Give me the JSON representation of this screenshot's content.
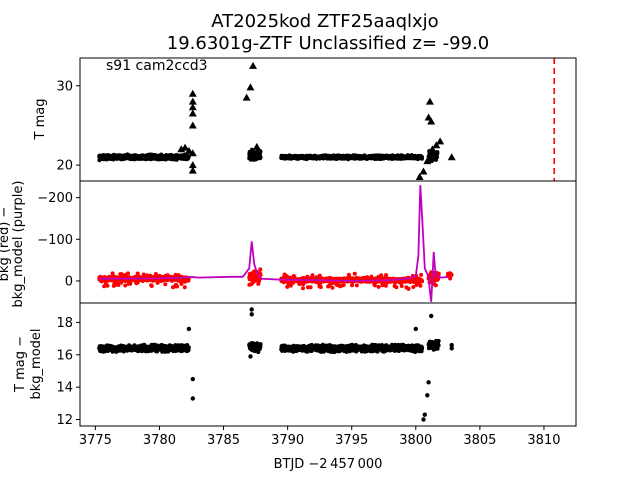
{
  "figure": {
    "title_line1": "AT2025kod  ZTF25aaqlxjo",
    "title_line2": "19.6301g-ZTF Unclassified z= -99.0",
    "sector_label": "s91 cam2ccd3",
    "x_label": "BTJD −2 457 000"
  },
  "colors": {
    "axis": "#000000",
    "points": "#000000",
    "bkg_points": "#ff0000",
    "bkg_model": "#bf00bf",
    "marker_line": "#ff0000"
  },
  "chart_data": [
    {
      "type": "scatter",
      "panel": "top",
      "ylabel": "T mag",
      "ylim": [
        33.5,
        18.0
      ],
      "inverted_y": true,
      "yticks": [
        20,
        30
      ],
      "xlim": [
        3773.8,
        3812.5
      ],
      "marker_line_x": 3810.8,
      "segments": [
        {
          "start": 3775.3,
          "end": 3782.3,
          "mag": 21.0,
          "spread": 0.4
        },
        {
          "start": 3787.0,
          "end": 3787.9,
          "mag": 21.3,
          "spread": 0.8
        },
        {
          "start": 3789.5,
          "end": 3800.5,
          "mag": 21.0,
          "spread": 0.3
        },
        {
          "start": 3801.0,
          "end": 3801.7,
          "mag": 21.2,
          "spread": 0.8
        }
      ],
      "triangles": [
        {
          "x": 3781.7,
          "y": 22.0
        },
        {
          "x": 3782.0,
          "y": 22.2
        },
        {
          "x": 3782.3,
          "y": 21.8
        },
        {
          "x": 3782.6,
          "y": 19.3
        },
        {
          "x": 3782.6,
          "y": 20.0
        },
        {
          "x": 3782.6,
          "y": 21.5
        },
        {
          "x": 3782.6,
          "y": 25.0
        },
        {
          "x": 3782.6,
          "y": 26.5
        },
        {
          "x": 3782.6,
          "y": 27.3
        },
        {
          "x": 3782.6,
          "y": 28.0
        },
        {
          "x": 3782.6,
          "y": 29.0
        },
        {
          "x": 3786.8,
          "y": 28.5
        },
        {
          "x": 3787.1,
          "y": 29.8
        },
        {
          "x": 3787.3,
          "y": 32.5
        },
        {
          "x": 3787.3,
          "y": 21.2
        },
        {
          "x": 3787.6,
          "y": 22.3
        },
        {
          "x": 3800.3,
          "y": 18.5
        },
        {
          "x": 3800.6,
          "y": 19.2
        },
        {
          "x": 3800.9,
          "y": 20.5
        },
        {
          "x": 3801.0,
          "y": 26.0
        },
        {
          "x": 3801.1,
          "y": 28.0
        },
        {
          "x": 3801.2,
          "y": 25.5
        },
        {
          "x": 3801.3,
          "y": 22.0
        },
        {
          "x": 3801.6,
          "y": 22.5
        },
        {
          "x": 3801.9,
          "y": 23.0
        },
        {
          "x": 3802.8,
          "y": 21.0
        }
      ]
    },
    {
      "type": "scatter+line",
      "panel": "middle",
      "ylabel": "bkg (red) −\nbkg_model (purple)",
      "ylabel_line1": "bkg (red) −",
      "ylabel_line2": "bkg_model (purple)",
      "ylim": [
        -240,
        53
      ],
      "yticks": [
        0,
        -100,
        -200
      ],
      "xlim": [
        3773.8,
        3812.5
      ],
      "bkg_model": {
        "x": [
          3775.3,
          3780.0,
          3782.0,
          3782.5,
          3783.0,
          3785.5,
          3786.5,
          3787.0,
          3787.2,
          3787.4,
          3787.6,
          3787.8,
          3788.0,
          3789.5,
          3792.0,
          3795.0,
          3798.0,
          3799.5,
          3800.0,
          3800.2,
          3800.35,
          3800.5,
          3800.7,
          3801.0,
          3801.1,
          3801.2,
          3801.3,
          3801.4,
          3801.5,
          3801.6,
          3802.0,
          3802.6
        ],
        "y": [
          -5,
          -6,
          -8,
          -10,
          -8,
          -10,
          -10,
          -30,
          -95,
          -40,
          -20,
          -10,
          -5,
          -3,
          -2,
          0,
          -2,
          -6,
          -12,
          -60,
          -230,
          -150,
          -30,
          -10,
          25,
          50,
          -10,
          -70,
          -30,
          -12,
          -8,
          -10
        ]
      },
      "bkg_segments": [
        {
          "start": 3775.3,
          "end": 3782.3,
          "base": -5,
          "spread": 6
        },
        {
          "start": 3787.0,
          "end": 3787.9,
          "base": -10,
          "spread": 15
        },
        {
          "start": 3789.5,
          "end": 3800.5,
          "base": -2,
          "spread": 6
        },
        {
          "start": 3801.0,
          "end": 3801.8,
          "base": -10,
          "spread": 15
        },
        {
          "start": 3802.5,
          "end": 3802.8,
          "base": -15,
          "spread": 5
        }
      ]
    },
    {
      "type": "scatter",
      "panel": "bottom",
      "ylabel": "T mag −\nbkg_model",
      "ylabel_line1": "T mag −",
      "ylabel_line2": "bkg_model",
      "ylim": [
        19.2,
        11.6
      ],
      "inverted_y": true,
      "yticks": [
        12,
        14,
        16,
        18
      ],
      "xlim": [
        3773.8,
        3812.5
      ],
      "xticks": [
        3775,
        3780,
        3785,
        3790,
        3795,
        3800,
        3805,
        3810
      ],
      "segments": [
        {
          "start": 3775.3,
          "end": 3782.3,
          "mag": 16.4,
          "spread": 0.45
        },
        {
          "start": 3787.0,
          "end": 3787.9,
          "mag": 16.5,
          "spread": 0.6
        },
        {
          "start": 3789.5,
          "end": 3800.5,
          "mag": 16.4,
          "spread": 0.45
        },
        {
          "start": 3801.0,
          "end": 3801.8,
          "mag": 16.6,
          "spread": 0.6
        }
      ],
      "outliers": [
        {
          "x": 3782.6,
          "y": 13.3
        },
        {
          "x": 3782.6,
          "y": 14.5
        },
        {
          "x": 3782.3,
          "y": 17.6
        },
        {
          "x": 3787.2,
          "y": 18.5
        },
        {
          "x": 3787.2,
          "y": 18.8
        },
        {
          "x": 3787.1,
          "y": 15.9
        },
        {
          "x": 3800.6,
          "y": 12.0
        },
        {
          "x": 3800.7,
          "y": 12.3
        },
        {
          "x": 3800.9,
          "y": 13.5
        },
        {
          "x": 3801.0,
          "y": 14.3
        },
        {
          "x": 3801.2,
          "y": 18.4
        },
        {
          "x": 3801.1,
          "y": 16.8
        },
        {
          "x": 3800.0,
          "y": 17.6
        },
        {
          "x": 3802.8,
          "y": 16.4
        },
        {
          "x": 3802.8,
          "y": 16.6
        }
      ]
    }
  ]
}
